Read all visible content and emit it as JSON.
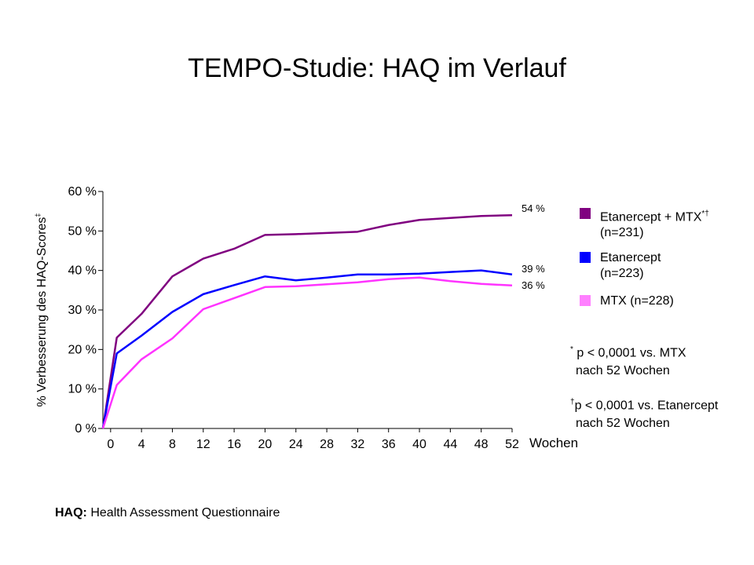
{
  "title": "TEMPO-Studie: HAQ im Verlauf",
  "chart_data": {
    "type": "line",
    "title": "TEMPO-Studie: HAQ im Verlauf",
    "ylabel": "% Verbesserung des HAQ-Scores",
    "ylabel_sup": "‡",
    "xlabel": "Wochen",
    "ylim": [
      0,
      60
    ],
    "xlim": [
      0,
      52
    ],
    "y_ticks": [
      "0 %",
      "10 %",
      "20 %",
      "30 %",
      "40 %",
      "50 %",
      "60 %"
    ],
    "x_ticks": [
      "0",
      "4",
      "8",
      "12",
      "16",
      "20",
      "24",
      "28",
      "32",
      "36",
      "40",
      "44",
      "48",
      "52"
    ],
    "grid": false,
    "legend_position": "right",
    "series": [
      {
        "name": "Etanercept + MTX",
        "name_sup": "*†",
        "n_label": "(n=231)",
        "color": "#800080",
        "end_label": "54 %",
        "x": [
          -1,
          0.8,
          4,
          8,
          12,
          16,
          20,
          24,
          28,
          32,
          36,
          40,
          44,
          48,
          52
        ],
        "values": [
          0,
          23,
          29,
          38.5,
          43,
          45.5,
          49,
          49.2,
          49.5,
          49.8,
          51.5,
          52.8,
          53.3,
          53.8,
          54
        ]
      },
      {
        "name": "Etanercept",
        "name_sup": "",
        "n_label": "(n=223)",
        "color": "#0000ff",
        "end_label": "39 %",
        "x": [
          -1,
          0.8,
          4,
          8,
          12,
          16,
          20,
          24,
          28,
          32,
          36,
          40,
          44,
          48,
          52
        ],
        "values": [
          0,
          19,
          23.5,
          29.5,
          34,
          36.3,
          38.5,
          37.5,
          38.2,
          39,
          39,
          39.2,
          39.6,
          40,
          39
        ]
      },
      {
        "name": "MTX (n=228)",
        "name_sup": "",
        "n_label": "",
        "color": "#ff33ff",
        "legend_color": "#ff80ff",
        "end_label": "36 %",
        "x": [
          -1,
          0.8,
          4,
          8,
          12,
          16,
          20,
          24,
          28,
          32,
          36,
          40,
          44,
          48,
          52
        ],
        "values": [
          0,
          11,
          17.5,
          22.8,
          30.2,
          33,
          35.8,
          36,
          36.5,
          37,
          37.8,
          38.2,
          37.3,
          36.6,
          36.2
        ]
      }
    ],
    "annotations": [
      {
        "marker": "*",
        "line1": "p < 0,0001 vs. MTX",
        "line2": "nach 52 Wochen"
      },
      {
        "marker": "†",
        "line1": "p < 0,0001 vs. Etanercept",
        "line2": "nach 52 Wochen"
      }
    ]
  },
  "footer": {
    "bold": "HAQ:",
    "text": "Health Assessment Questionnaire"
  }
}
